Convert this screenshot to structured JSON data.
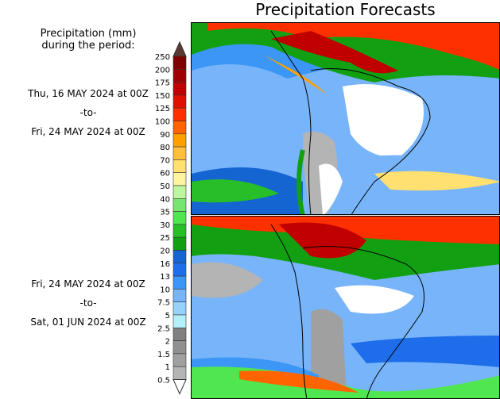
{
  "title": "Precipitation Forecasts",
  "legend_title": [
    "Precipitation (mm)",
    "during the period:"
  ],
  "periods": [
    {
      "start": "Thu, 16 MAY 2024 at 00Z",
      "sep": "-to-",
      "end": "Fri, 24 MAY 2024 at 00Z"
    },
    {
      "start": "Fri, 24 MAY 2024 at 00Z",
      "sep": "-to-",
      "end": "Sat, 01 JUN 2024 at 00Z"
    }
  ],
  "colorbar": {
    "labels": [
      "250",
      "200",
      "175",
      "150",
      "125",
      "100",
      "90",
      "80",
      "70",
      "60",
      "50",
      "40",
      "35",
      "30",
      "25",
      "20",
      "16",
      "13",
      "10",
      "7.5",
      "5",
      "2.5",
      "2",
      "1.5",
      "1",
      "0.5"
    ],
    "colors": [
      "#7f0000",
      "#a00000",
      "#c00000",
      "#e01000",
      "#ff3000",
      "#ff6400",
      "#ffa000",
      "#ffbe3c",
      "#ffe070",
      "#fff5a0",
      "#bef5a0",
      "#78e66e",
      "#50e650",
      "#28be28",
      "#12a012",
      "#1464d2",
      "#1e6eeb",
      "#3c96f5",
      "#78b4fa",
      "#96d2fa",
      "#b4f0fa",
      "#808080",
      "#909090",
      "#a0a0a0",
      "#b4b4b4"
    ],
    "over_color": "#5b3a32",
    "under_color": "#ffffff"
  }
}
